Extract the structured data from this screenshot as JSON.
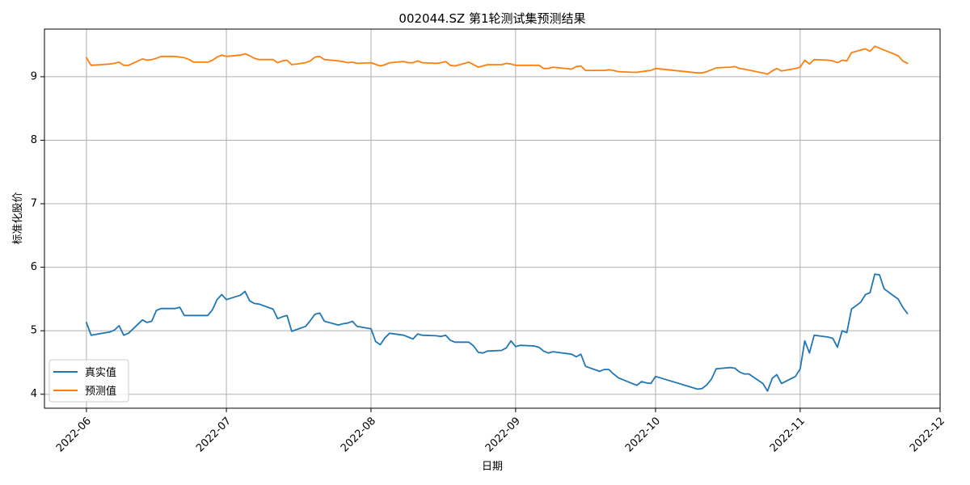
{
  "chart_data": {
    "type": "line",
    "title": "002044.SZ 第1轮测试集预测结果",
    "xlabel": "日期",
    "ylabel": "标准化股价",
    "xlim": [
      "2022-05-23",
      "2022-12-01"
    ],
    "ylim": [
      3.78,
      9.75
    ],
    "x_ticks": [
      "2022-06",
      "2022-07",
      "2022-08",
      "2022-09",
      "2022-10",
      "2022-11",
      "2022-12"
    ],
    "y_ticks": [
      4,
      5,
      6,
      7,
      8,
      9
    ],
    "grid": true,
    "legend_position": "lower-left",
    "series": [
      {
        "name": "真实值",
        "color": "#1f77b4",
        "points": [
          [
            "2022-06-01",
            5.13
          ],
          [
            "2022-06-02",
            4.93
          ],
          [
            "2022-06-06",
            4.98
          ],
          [
            "2022-06-07",
            5.01
          ],
          [
            "2022-06-08",
            5.08
          ],
          [
            "2022-06-09",
            4.93
          ],
          [
            "2022-06-10",
            4.96
          ],
          [
            "2022-06-13",
            5.17
          ],
          [
            "2022-06-14",
            5.13
          ],
          [
            "2022-06-15",
            5.15
          ],
          [
            "2022-06-16",
            5.32
          ],
          [
            "2022-06-17",
            5.35
          ],
          [
            "2022-06-20",
            5.35
          ],
          [
            "2022-06-21",
            5.37
          ],
          [
            "2022-06-22",
            5.24
          ],
          [
            "2022-06-23",
            5.24
          ],
          [
            "2022-06-24",
            5.24
          ],
          [
            "2022-06-27",
            5.24
          ],
          [
            "2022-06-28",
            5.33
          ],
          [
            "2022-06-29",
            5.49
          ],
          [
            "2022-06-30",
            5.57
          ],
          [
            "2022-07-01",
            5.49
          ],
          [
            "2022-07-04",
            5.56
          ],
          [
            "2022-07-05",
            5.62
          ],
          [
            "2022-07-06",
            5.47
          ],
          [
            "2022-07-07",
            5.43
          ],
          [
            "2022-07-08",
            5.42
          ],
          [
            "2022-07-11",
            5.34
          ],
          [
            "2022-07-12",
            5.19
          ],
          [
            "2022-07-13",
            5.22
          ],
          [
            "2022-07-14",
            5.24
          ],
          [
            "2022-07-15",
            4.99
          ],
          [
            "2022-07-18",
            5.07
          ],
          [
            "2022-07-19",
            5.16
          ],
          [
            "2022-07-20",
            5.26
          ],
          [
            "2022-07-21",
            5.28
          ],
          [
            "2022-07-22",
            5.15
          ],
          [
            "2022-07-25",
            5.09
          ],
          [
            "2022-07-26",
            5.11
          ],
          [
            "2022-07-27",
            5.12
          ],
          [
            "2022-07-28",
            5.15
          ],
          [
            "2022-07-29",
            5.07
          ],
          [
            "2022-08-01",
            5.03
          ],
          [
            "2022-08-02",
            4.83
          ],
          [
            "2022-08-03",
            4.78
          ],
          [
            "2022-08-04",
            4.89
          ],
          [
            "2022-08-05",
            4.96
          ],
          [
            "2022-08-08",
            4.93
          ],
          [
            "2022-08-09",
            4.9
          ],
          [
            "2022-08-10",
            4.87
          ],
          [
            "2022-08-11",
            4.95
          ],
          [
            "2022-08-12",
            4.93
          ],
          [
            "2022-08-15",
            4.92
          ],
          [
            "2022-08-16",
            4.91
          ],
          [
            "2022-08-17",
            4.93
          ],
          [
            "2022-08-18",
            4.85
          ],
          [
            "2022-08-19",
            4.82
          ],
          [
            "2022-08-22",
            4.82
          ],
          [
            "2022-08-23",
            4.76
          ],
          [
            "2022-08-24",
            4.66
          ],
          [
            "2022-08-25",
            4.65
          ],
          [
            "2022-08-26",
            4.68
          ],
          [
            "2022-08-29",
            4.69
          ],
          [
            "2022-08-30",
            4.73
          ],
          [
            "2022-08-31",
            4.84
          ],
          [
            "2022-09-01",
            4.75
          ],
          [
            "2022-09-02",
            4.77
          ],
          [
            "2022-09-05",
            4.76
          ],
          [
            "2022-09-06",
            4.74
          ],
          [
            "2022-09-07",
            4.68
          ],
          [
            "2022-09-08",
            4.65
          ],
          [
            "2022-09-09",
            4.67
          ],
          [
            "2022-09-13",
            4.63
          ],
          [
            "2022-09-14",
            4.59
          ],
          [
            "2022-09-15",
            4.63
          ],
          [
            "2022-09-16",
            4.44
          ],
          [
            "2022-09-19",
            4.36
          ],
          [
            "2022-09-20",
            4.39
          ],
          [
            "2022-09-21",
            4.39
          ],
          [
            "2022-09-22",
            4.32
          ],
          [
            "2022-09-23",
            4.26
          ],
          [
            "2022-09-26",
            4.17
          ],
          [
            "2022-09-27",
            4.14
          ],
          [
            "2022-09-28",
            4.2
          ],
          [
            "2022-09-29",
            4.18
          ],
          [
            "2022-09-30",
            4.17
          ],
          [
            "2022-10-01",
            4.28
          ],
          [
            "2022-10-10",
            4.08
          ],
          [
            "2022-10-11",
            4.09
          ],
          [
            "2022-10-12",
            4.15
          ],
          [
            "2022-10-13",
            4.24
          ],
          [
            "2022-10-14",
            4.4
          ],
          [
            "2022-10-17",
            4.42
          ],
          [
            "2022-10-18",
            4.41
          ],
          [
            "2022-10-19",
            4.35
          ],
          [
            "2022-10-20",
            4.32
          ],
          [
            "2022-10-21",
            4.32
          ],
          [
            "2022-10-24",
            4.17
          ],
          [
            "2022-10-25",
            4.05
          ],
          [
            "2022-10-26",
            4.25
          ],
          [
            "2022-10-27",
            4.31
          ],
          [
            "2022-10-28",
            4.17
          ],
          [
            "2022-10-31",
            4.28
          ],
          [
            "2022-11-01",
            4.4
          ],
          [
            "2022-11-02",
            4.84
          ],
          [
            "2022-11-03",
            4.65
          ],
          [
            "2022-11-04",
            4.93
          ],
          [
            "2022-11-07",
            4.9
          ],
          [
            "2022-11-08",
            4.88
          ],
          [
            "2022-11-09",
            4.74
          ],
          [
            "2022-11-10",
            5.0
          ],
          [
            "2022-11-11",
            4.97
          ],
          [
            "2022-11-12",
            5.34
          ],
          [
            "2022-11-14",
            5.45
          ],
          [
            "2022-11-15",
            5.57
          ],
          [
            "2022-11-16",
            5.6
          ],
          [
            "2022-11-17",
            5.89
          ],
          [
            "2022-11-18",
            5.88
          ],
          [
            "2022-11-19",
            5.66
          ],
          [
            "2022-11-21",
            5.55
          ],
          [
            "2022-11-22",
            5.5
          ],
          [
            "2022-11-23",
            5.37
          ],
          [
            "2022-11-24",
            5.27
          ]
        ]
      },
      {
        "name": "预测值",
        "color": "#ff7f0e",
        "points": [
          [
            "2022-06-01",
            9.3
          ],
          [
            "2022-06-02",
            9.18
          ],
          [
            "2022-06-06",
            9.2
          ],
          [
            "2022-06-07",
            9.21
          ],
          [
            "2022-06-08",
            9.23
          ],
          [
            "2022-06-09",
            9.18
          ],
          [
            "2022-06-10",
            9.18
          ],
          [
            "2022-06-13",
            9.28
          ],
          [
            "2022-06-14",
            9.26
          ],
          [
            "2022-06-15",
            9.27
          ],
          [
            "2022-06-16",
            9.29
          ],
          [
            "2022-06-17",
            9.32
          ],
          [
            "2022-06-20",
            9.32
          ],
          [
            "2022-06-21",
            9.31
          ],
          [
            "2022-06-22",
            9.3
          ],
          [
            "2022-06-23",
            9.27
          ],
          [
            "2022-06-24",
            9.23
          ],
          [
            "2022-06-27",
            9.23
          ],
          [
            "2022-06-28",
            9.26
          ],
          [
            "2022-06-29",
            9.31
          ],
          [
            "2022-06-30",
            9.34
          ],
          [
            "2022-07-01",
            9.32
          ],
          [
            "2022-07-04",
            9.34
          ],
          [
            "2022-07-05",
            9.36
          ],
          [
            "2022-07-06",
            9.33
          ],
          [
            "2022-07-07",
            9.29
          ],
          [
            "2022-07-08",
            9.27
          ],
          [
            "2022-07-11",
            9.27
          ],
          [
            "2022-07-12",
            9.22
          ],
          [
            "2022-07-13",
            9.25
          ],
          [
            "2022-07-14",
            9.26
          ],
          [
            "2022-07-15",
            9.19
          ],
          [
            "2022-07-18",
            9.22
          ],
          [
            "2022-07-19",
            9.25
          ],
          [
            "2022-07-20",
            9.31
          ],
          [
            "2022-07-21",
            9.32
          ],
          [
            "2022-07-22",
            9.27
          ],
          [
            "2022-07-25",
            9.25
          ],
          [
            "2022-07-26",
            9.24
          ],
          [
            "2022-07-27",
            9.22
          ],
          [
            "2022-07-28",
            9.23
          ],
          [
            "2022-07-29",
            9.21
          ],
          [
            "2022-08-01",
            9.22
          ],
          [
            "2022-08-03",
            9.17
          ],
          [
            "2022-08-04",
            9.19
          ],
          [
            "2022-08-05",
            9.22
          ],
          [
            "2022-08-08",
            9.24
          ],
          [
            "2022-08-09",
            9.22
          ],
          [
            "2022-08-10",
            9.22
          ],
          [
            "2022-08-11",
            9.25
          ],
          [
            "2022-08-12",
            9.22
          ],
          [
            "2022-08-15",
            9.21
          ],
          [
            "2022-08-16",
            9.22
          ],
          [
            "2022-08-17",
            9.24
          ],
          [
            "2022-08-18",
            9.18
          ],
          [
            "2022-08-19",
            9.17
          ],
          [
            "2022-08-22",
            9.23
          ],
          [
            "2022-08-24",
            9.15
          ],
          [
            "2022-08-26",
            9.19
          ],
          [
            "2022-08-29",
            9.19
          ],
          [
            "2022-08-30",
            9.21
          ],
          [
            "2022-08-31",
            9.2
          ],
          [
            "2022-09-01",
            9.18
          ],
          [
            "2022-09-05",
            9.18
          ],
          [
            "2022-09-06",
            9.18
          ],
          [
            "2022-09-07",
            9.13
          ],
          [
            "2022-09-08",
            9.13
          ],
          [
            "2022-09-09",
            9.15
          ],
          [
            "2022-09-13",
            9.12
          ],
          [
            "2022-09-14",
            9.16
          ],
          [
            "2022-09-15",
            9.17
          ],
          [
            "2022-09-16",
            9.1
          ],
          [
            "2022-09-19",
            9.1
          ],
          [
            "2022-09-20",
            9.1
          ],
          [
            "2022-09-21",
            9.11
          ],
          [
            "2022-09-22",
            9.1
          ],
          [
            "2022-09-23",
            9.08
          ],
          [
            "2022-09-26",
            9.07
          ],
          [
            "2022-09-27",
            9.07
          ],
          [
            "2022-09-28",
            9.08
          ],
          [
            "2022-09-29",
            9.09
          ],
          [
            "2022-09-30",
            9.1
          ],
          [
            "2022-10-01",
            9.13
          ],
          [
            "2022-10-10",
            9.06
          ],
          [
            "2022-10-11",
            9.06
          ],
          [
            "2022-10-12",
            9.08
          ],
          [
            "2022-10-13",
            9.11
          ],
          [
            "2022-10-14",
            9.14
          ],
          [
            "2022-10-17",
            9.15
          ],
          [
            "2022-10-18",
            9.16
          ],
          [
            "2022-10-19",
            9.13
          ],
          [
            "2022-10-20",
            9.12
          ],
          [
            "2022-10-24",
            9.06
          ],
          [
            "2022-10-25",
            9.04
          ],
          [
            "2022-10-26",
            9.09
          ],
          [
            "2022-10-27",
            9.13
          ],
          [
            "2022-10-28",
            9.09
          ],
          [
            "2022-10-31",
            9.13
          ],
          [
            "2022-11-01",
            9.15
          ],
          [
            "2022-11-02",
            9.26
          ],
          [
            "2022-11-03",
            9.2
          ],
          [
            "2022-11-04",
            9.27
          ],
          [
            "2022-11-07",
            9.26
          ],
          [
            "2022-11-08",
            9.25
          ],
          [
            "2022-11-09",
            9.22
          ],
          [
            "2022-11-10",
            9.26
          ],
          [
            "2022-11-11",
            9.25
          ],
          [
            "2022-11-12",
            9.38
          ],
          [
            "2022-11-14",
            9.42
          ],
          [
            "2022-11-15",
            9.44
          ],
          [
            "2022-11-16",
            9.4
          ],
          [
            "2022-11-17",
            9.48
          ],
          [
            "2022-11-18",
            9.45
          ],
          [
            "2022-11-19",
            9.42
          ],
          [
            "2022-11-21",
            9.36
          ],
          [
            "2022-11-22",
            9.33
          ],
          [
            "2022-11-23",
            9.25
          ],
          [
            "2022-11-24",
            9.21
          ]
        ]
      }
    ]
  }
}
